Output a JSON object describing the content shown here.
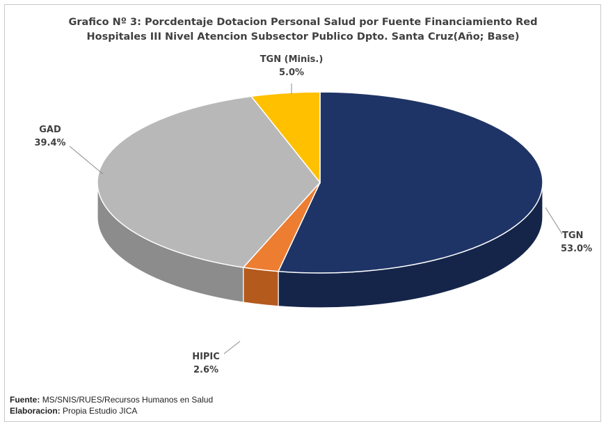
{
  "chart_data": {
    "type": "pie",
    "style": "3d",
    "title_lines": [
      "Grafico Nº 3: Porcdentaje Dotacion Personal Salud por Fuente Financiamiento  Red",
      "Hospitales III Nivel Atencion Subsector Publico Dpto. Santa Cruz(Año; Base)"
    ],
    "slices": [
      {
        "label": "TGN",
        "value": 53.0,
        "value_label": "53.0%",
        "color": "#1f3466",
        "side_color": "#15254a"
      },
      {
        "label": "HIPIC",
        "value": 2.6,
        "value_label": "2.6%",
        "color": "#ed7d31",
        "side_color": "#b35a1c"
      },
      {
        "label": "GAD",
        "value": 39.4,
        "value_label": "39.4%",
        "color": "#b8b8b8",
        "side_color": "#8c8c8c"
      },
      {
        "label": "TGN (Minis.)",
        "value": 5.0,
        "value_label": "5.0%",
        "color": "#ffc000",
        "side_color": "#c79500"
      }
    ]
  },
  "footer": {
    "source_label": "Fuente:",
    "source_text": "MS/SNIS/RUES/Recursos Humanos en Salud",
    "credit_label": "Elaboracion:",
    "credit_text": "Propia Estudio JICA"
  }
}
